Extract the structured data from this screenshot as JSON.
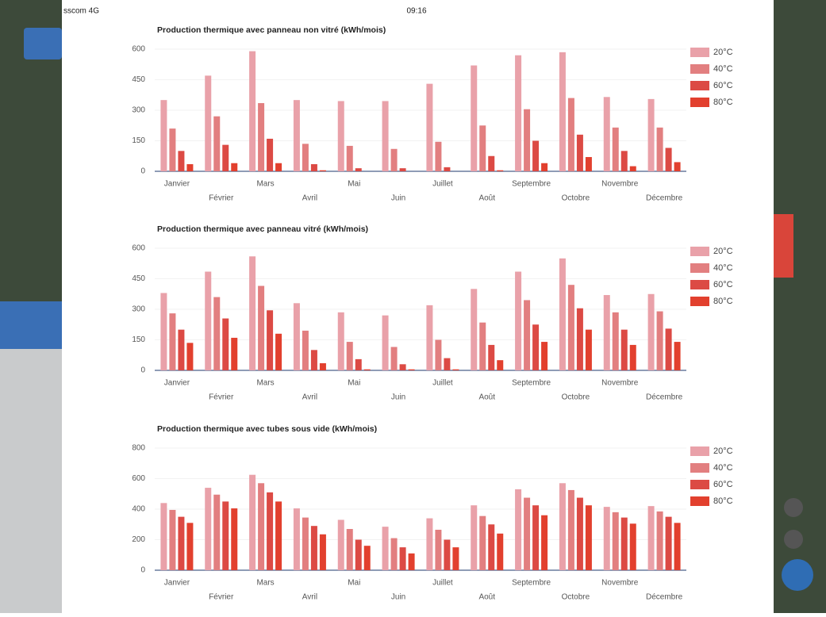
{
  "status": {
    "carrier": "sscom 4G",
    "time": "09:16"
  },
  "chart_data": [
    {
      "type": "bar",
      "title": "Production thermique avec panneau non vitré (kWh/mois)",
      "categories": [
        "Janvier",
        "Février",
        "Mars",
        "Avril",
        "Mai",
        "Juin",
        "Juillet",
        "Août",
        "Septembre",
        "Octobre",
        "Novembre",
        "Décembre"
      ],
      "series": [
        {
          "name": "20°C",
          "color": "#e9a1a9",
          "values": [
            350,
            470,
            590,
            350,
            345,
            345,
            430,
            520,
            570,
            585,
            365,
            355
          ]
        },
        {
          "name": "40°C",
          "color": "#e27f80",
          "values": [
            210,
            270,
            335,
            135,
            125,
            110,
            145,
            225,
            305,
            360,
            215,
            215
          ]
        },
        {
          "name": "60°C",
          "color": "#dc4a44",
          "values": [
            100,
            130,
            160,
            35,
            15,
            15,
            20,
            75,
            150,
            180,
            100,
            115
          ]
        },
        {
          "name": "80°C",
          "color": "#e2402e",
          "values": [
            35,
            40,
            40,
            5,
            0,
            0,
            0,
            5,
            40,
            70,
            25,
            45
          ]
        }
      ],
      "ylim": [
        0,
        600
      ],
      "yticks": [
        0,
        150,
        300,
        450,
        600
      ],
      "legend": "right"
    },
    {
      "type": "bar",
      "title": "Production thermique avec panneau vitré (kWh/mois)",
      "categories": [
        "Janvier",
        "Février",
        "Mars",
        "Avril",
        "Mai",
        "Juin",
        "Juillet",
        "Août",
        "Septembre",
        "Octobre",
        "Novembre",
        "Décembre"
      ],
      "series": [
        {
          "name": "20°C",
          "color": "#e9a1a9",
          "values": [
            380,
            485,
            560,
            330,
            285,
            270,
            320,
            400,
            485,
            550,
            370,
            375
          ]
        },
        {
          "name": "40°C",
          "color": "#e27f80",
          "values": [
            280,
            360,
            415,
            195,
            140,
            115,
            150,
            235,
            345,
            420,
            285,
            290
          ]
        },
        {
          "name": "60°C",
          "color": "#dc4a44",
          "values": [
            200,
            255,
            295,
            100,
            55,
            30,
            60,
            125,
            225,
            305,
            200,
            205
          ]
        },
        {
          "name": "80°C",
          "color": "#e2402e",
          "values": [
            135,
            160,
            180,
            35,
            5,
            5,
            5,
            50,
            140,
            200,
            125,
            140
          ]
        }
      ],
      "ylim": [
        0,
        600
      ],
      "yticks": [
        0,
        150,
        300,
        450,
        600
      ],
      "legend": "right"
    },
    {
      "type": "bar",
      "title": "Production thermique avec tubes sous vide (kWh/mois)",
      "categories": [
        "Janvier",
        "Février",
        "Mars",
        "Avril",
        "Mai",
        "Juin",
        "Juillet",
        "Août",
        "Septembre",
        "Octobre",
        "Novembre",
        "Décembre"
      ],
      "series": [
        {
          "name": "20°C",
          "color": "#e9a1a9",
          "values": [
            440,
            540,
            625,
            405,
            330,
            285,
            340,
            425,
            530,
            570,
            415,
            420
          ]
        },
        {
          "name": "40°C",
          "color": "#e27f80",
          "values": [
            395,
            495,
            570,
            345,
            270,
            210,
            265,
            355,
            475,
            525,
            380,
            385
          ]
        },
        {
          "name": "60°C",
          "color": "#dc4a44",
          "values": [
            350,
            450,
            510,
            290,
            200,
            150,
            200,
            300,
            425,
            475,
            345,
            350
          ]
        },
        {
          "name": "80°C",
          "color": "#e2402e",
          "values": [
            310,
            405,
            450,
            235,
            160,
            110,
            150,
            240,
            360,
            425,
            305,
            310
          ]
        }
      ],
      "ylim": [
        0,
        800
      ],
      "yticks": [
        0,
        200,
        400,
        600,
        800
      ],
      "legend": "right"
    }
  ]
}
